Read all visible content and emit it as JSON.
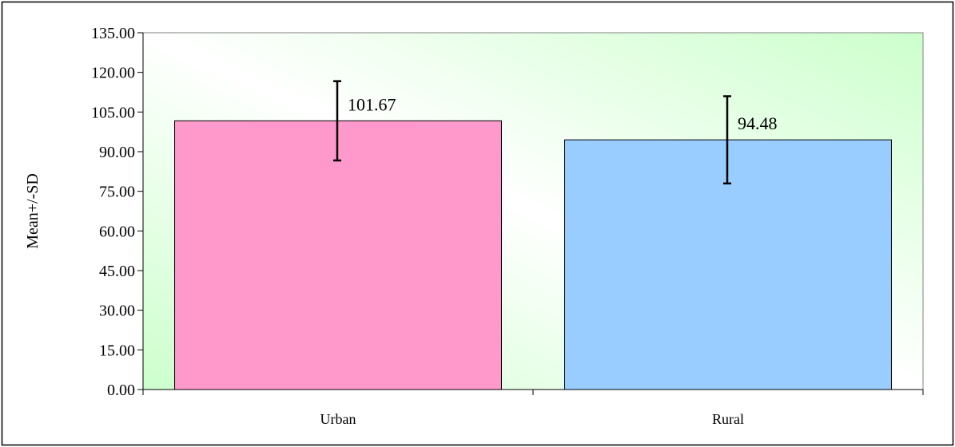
{
  "chart_data": {
    "type": "bar",
    "categories": [
      "Urban",
      "Rural"
    ],
    "values": [
      101.67,
      94.48
    ],
    "error_upper": [
      116.67,
      110.98
    ],
    "error_lower": [
      86.67,
      77.98
    ],
    "data_labels": [
      "101.67",
      "94.48"
    ],
    "bar_colors": [
      "#ff99cc",
      "#99ccff"
    ],
    "plot_background": [
      "#ccffcc",
      "#ffffff",
      "#ccffcc"
    ],
    "title": "",
    "xlabel": "",
    "ylabel": "Mean+/-SD",
    "ylim": [
      0,
      135
    ],
    "yticks": [
      0,
      15,
      30,
      45,
      60,
      75,
      90,
      105,
      120,
      135
    ],
    "ytick_labels": [
      "0.00",
      "15.00",
      "30.00",
      "45.00",
      "60.00",
      "75.00",
      "90.00",
      "105.00",
      "120.00",
      "135.00"
    ],
    "grid": false,
    "legend": "none"
  }
}
